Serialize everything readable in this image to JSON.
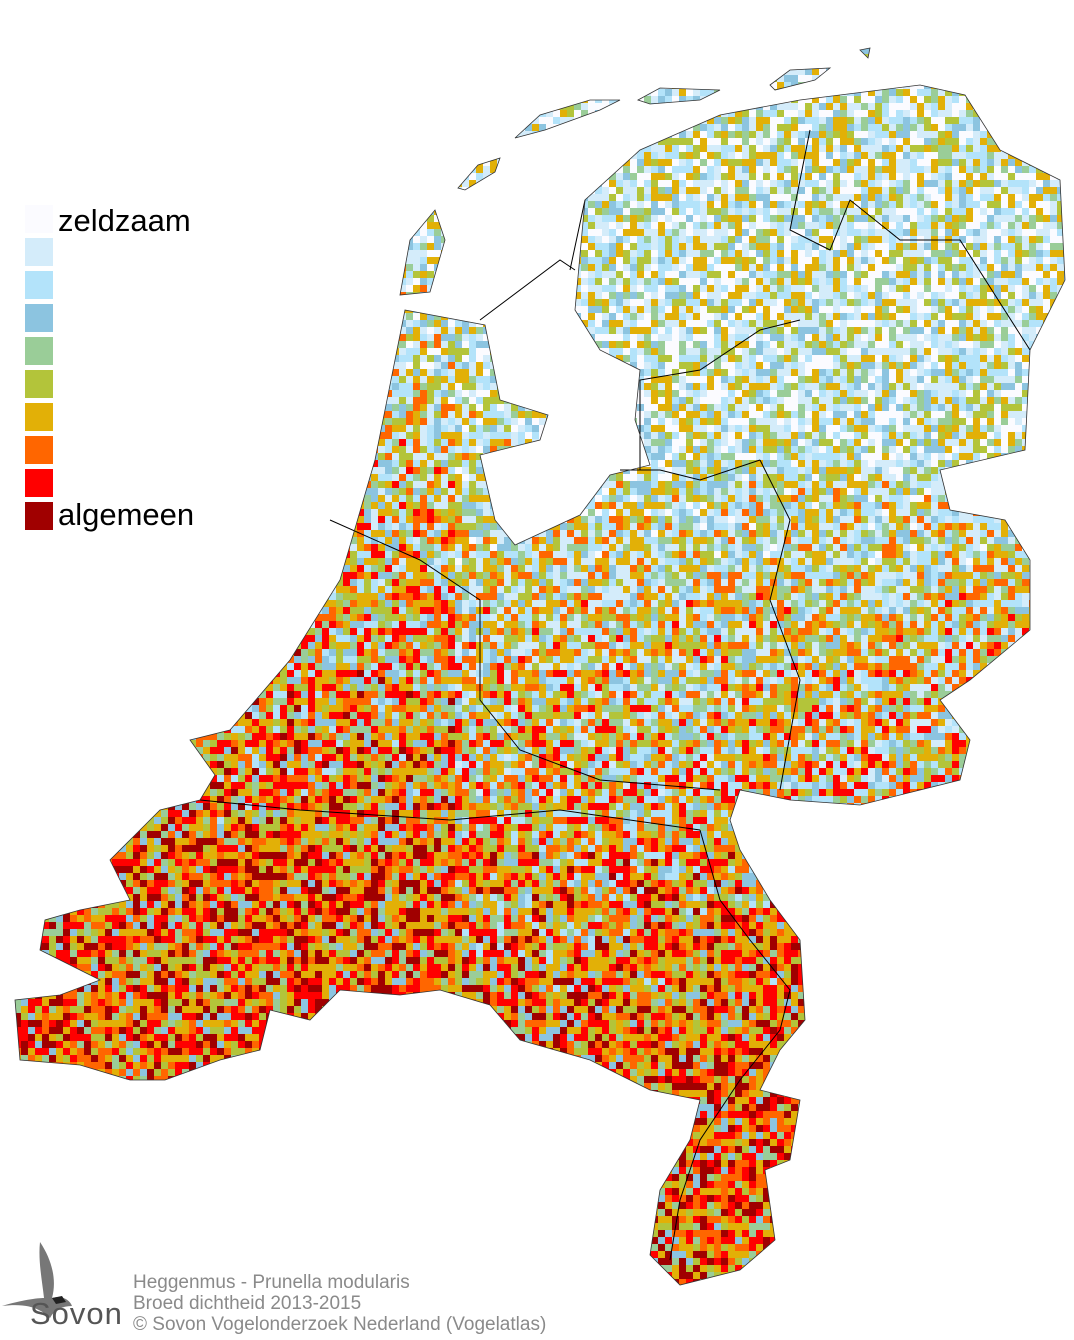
{
  "legend": {
    "top_label": "zeldzaam",
    "bottom_label": "algemeen",
    "colors": [
      "#fbfbff",
      "#d4ecfa",
      "#b3e3fa",
      "#8cc4e0",
      "#9acd98",
      "#b3c43a",
      "#e2b007",
      "#ff6600",
      "#ff0000",
      "#a00000"
    ]
  },
  "footer": {
    "line1": "Heggenmus - Prunella modularis",
    "line2": "Broed dichtheid 2013-2015",
    "line3": "© Sovon Vogelonderzoek Nederland (Vogelatlas)"
  },
  "logo": {
    "text": "Sovon"
  },
  "map": {
    "border_color": "#000000"
  }
}
